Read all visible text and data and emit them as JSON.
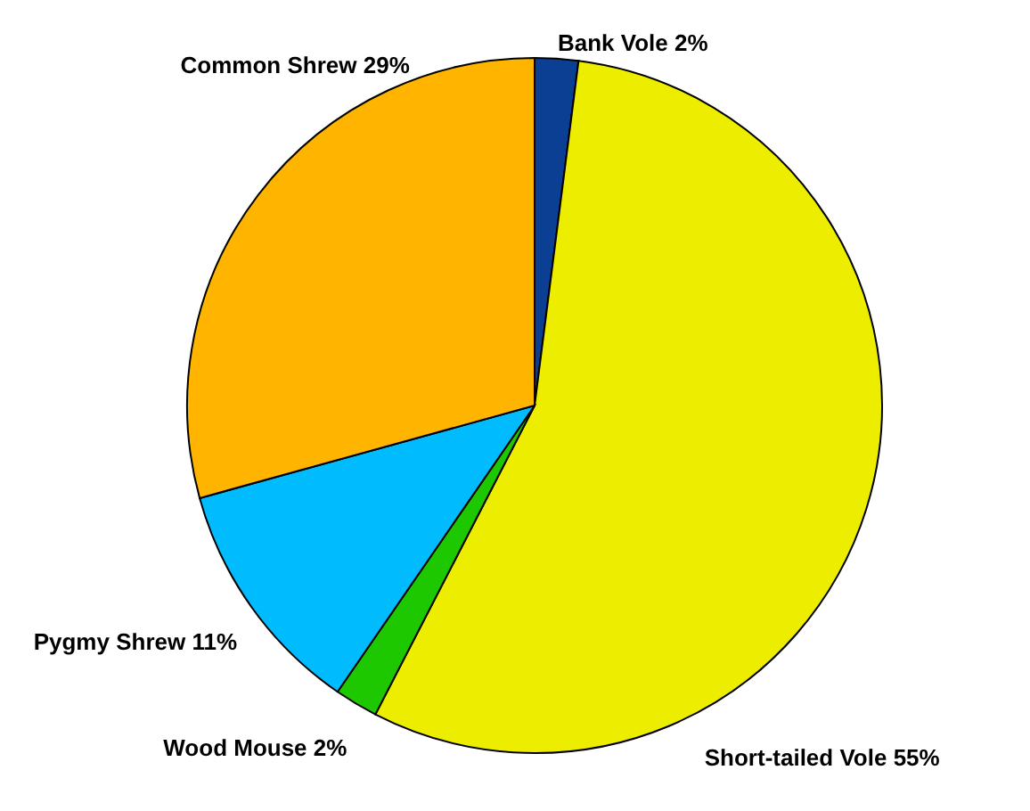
{
  "chart_data": {
    "type": "pie",
    "categories": [
      "Bank Vole",
      "Short-tailed Vole",
      "Wood Mouse",
      "Pygmy Shrew",
      "Common Shrew"
    ],
    "values": [
      2,
      55,
      2,
      11,
      29
    ],
    "value_labels": [
      "2%",
      "55%",
      "2%",
      "11%",
      "29%"
    ],
    "colors": [
      "#0b3f94",
      "#eded00",
      "#1ec800",
      "#00bcff",
      "#ffb400"
    ]
  }
}
